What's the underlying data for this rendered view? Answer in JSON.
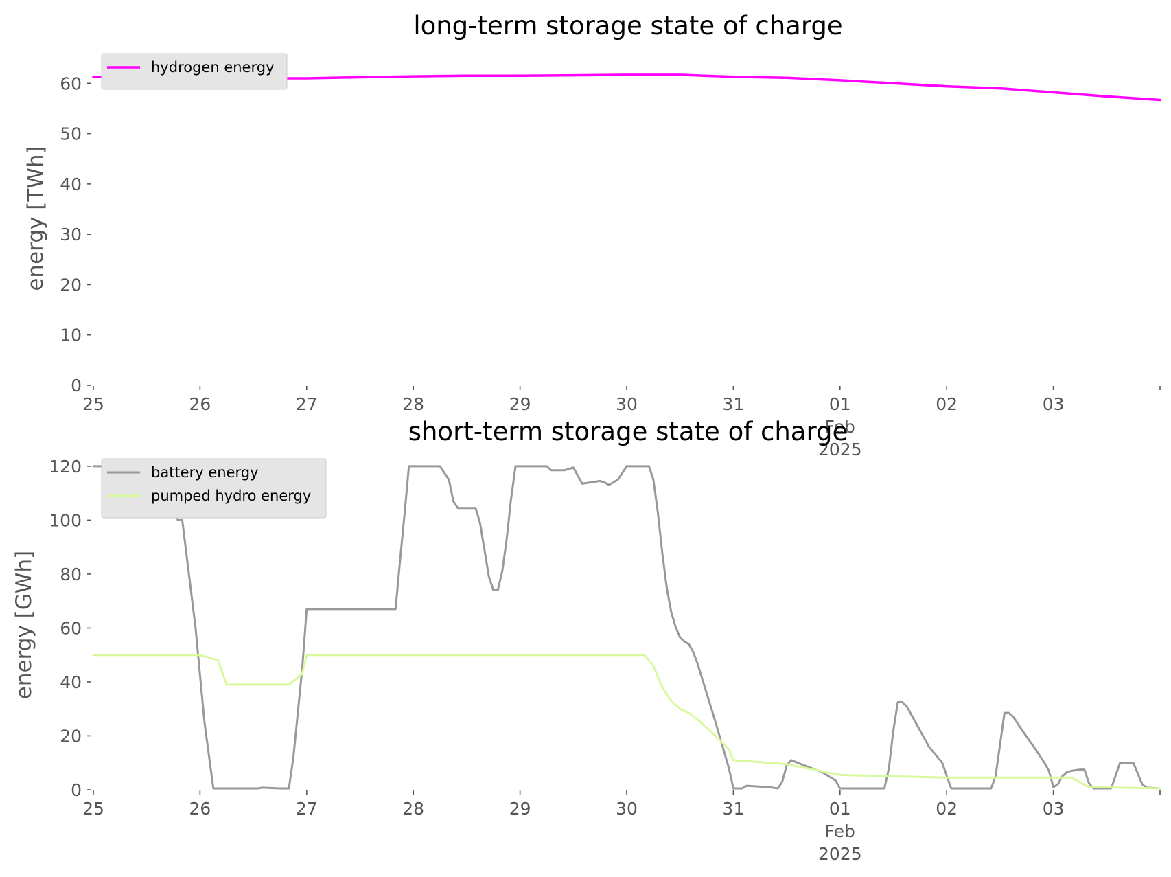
{
  "chart_data": [
    {
      "type": "line",
      "title": "long-term storage state of charge",
      "xlabel": "",
      "ylabel": "energy [TWh]",
      "x_tick_labels": [
        "25",
        "26",
        "27",
        "28",
        "29",
        "30",
        "31",
        "01\nFeb\n2025",
        "02",
        "03"
      ],
      "xlim": [
        "2025-01-25",
        "2025-02-04"
      ],
      "ylim": [
        0,
        64
      ],
      "y_ticks": [
        0,
        10,
        20,
        30,
        40,
        50,
        60
      ],
      "grid": false,
      "legend_position": "top-left",
      "series": [
        {
          "name": "hydrogen energy",
          "color": "#ff00ff",
          "points": [
            [
              "2025-01-25",
              61.3
            ],
            [
              "2025-01-25T12:00",
              61.2
            ],
            [
              "2025-01-26",
              61.1
            ],
            [
              "2025-01-26T12:00",
              61.0
            ],
            [
              "2025-01-27",
              61.0
            ],
            [
              "2025-01-27T12:00",
              61.2
            ],
            [
              "2025-01-28",
              61.4
            ],
            [
              "2025-01-28T12:00",
              61.5
            ],
            [
              "2025-01-29",
              61.5
            ],
            [
              "2025-01-29T12:00",
              61.6
            ],
            [
              "2025-01-30",
              61.7
            ],
            [
              "2025-01-30T12:00",
              61.7
            ],
            [
              "2025-01-31",
              61.3
            ],
            [
              "2025-01-31T12:00",
              61.1
            ],
            [
              "2025-02-01",
              60.6
            ],
            [
              "2025-02-01T12:00",
              60.0
            ],
            [
              "2025-02-02",
              59.4
            ],
            [
              "2025-02-02T12:00",
              59.0
            ],
            [
              "2025-02-03",
              58.2
            ],
            [
              "2025-02-03T12:00",
              57.4
            ],
            [
              "2025-02-04",
              56.7
            ]
          ]
        }
      ]
    },
    {
      "type": "line",
      "title": "short-term storage state of charge",
      "xlabel": "",
      "ylabel": "energy [GWh]",
      "x_tick_labels": [
        "25",
        "26",
        "27",
        "28",
        "29",
        "30",
        "31",
        "01\nFeb\n2025",
        "02",
        "03"
      ],
      "xlim": [
        "2025-01-25",
        "2025-02-04"
      ],
      "ylim": [
        0,
        122
      ],
      "y_ticks": [
        0,
        20,
        40,
        60,
        80,
        100,
        120
      ],
      "grid": false,
      "legend_position": "top-left",
      "series": [
        {
          "name": "battery energy",
          "color": "#999999",
          "points": [
            [
              "2025-01-25",
              120
            ],
            [
              "2025-01-25T17:00",
              120
            ],
            [
              "2025-01-25T19:00",
              100
            ],
            [
              "2025-01-25T20:00",
              100
            ],
            [
              "2025-01-25T23:00",
              60
            ],
            [
              "2025-01-26T01:00",
              25
            ],
            [
              "2025-01-26T03:00",
              0.5
            ],
            [
              "2025-01-26T13:00",
              0.5
            ],
            [
              "2025-01-26T14:00",
              0.8
            ],
            [
              "2025-01-26T18:00",
              0.5
            ],
            [
              "2025-01-26T20:00",
              0.5
            ],
            [
              "2025-01-26T21:00",
              12
            ],
            [
              "2025-01-26T23:00",
              45
            ],
            [
              "2025-01-27",
              67
            ],
            [
              "2025-01-27T12:00",
              67
            ],
            [
              "2025-01-27T20:00",
              67
            ],
            [
              "2025-01-27T21:00",
              85
            ],
            [
              "2025-01-27T22:00",
              102
            ],
            [
              "2025-01-27T23:00",
              120
            ],
            [
              "2025-01-28T06:00",
              120
            ],
            [
              "2025-01-28T08:00",
              115
            ],
            [
              "2025-01-28T09:00",
              107
            ],
            [
              "2025-01-28T10:00",
              104.5
            ],
            [
              "2025-01-28T14:00",
              104.5
            ],
            [
              "2025-01-28T15:00",
              99
            ],
            [
              "2025-01-28T16:00",
              89
            ],
            [
              "2025-01-28T17:00",
              79
            ],
            [
              "2025-01-28T18:00",
              74
            ],
            [
              "2025-01-28T19:00",
              74
            ],
            [
              "2025-01-28T20:00",
              81
            ],
            [
              "2025-01-28T21:00",
              93
            ],
            [
              "2025-01-28T22:00",
              108
            ],
            [
              "2025-01-28T23:00",
              120
            ],
            [
              "2025-01-29T06:00",
              120
            ],
            [
              "2025-01-29T07:00",
              118.5
            ],
            [
              "2025-01-29T10:00",
              118.5
            ],
            [
              "2025-01-29T12:00",
              119.5
            ],
            [
              "2025-01-29T14:00",
              113.5
            ],
            [
              "2025-01-29T18:00",
              114.5
            ],
            [
              "2025-01-29T19:00",
              114
            ],
            [
              "2025-01-29T20:00",
              113
            ],
            [
              "2025-01-29T22:00",
              115
            ],
            [
              "2025-01-30",
              120
            ],
            [
              "2025-01-30T05:00",
              120
            ],
            [
              "2025-01-30T06:00",
              115
            ],
            [
              "2025-01-30T07:00",
              103
            ],
            [
              "2025-01-30T08:00",
              88
            ],
            [
              "2025-01-30T09:00",
              75
            ],
            [
              "2025-01-30T10:00",
              66
            ],
            [
              "2025-01-30T11:00",
              60.5
            ],
            [
              "2025-01-30T12:00",
              56.5
            ],
            [
              "2025-01-30T13:00",
              55
            ],
            [
              "2025-01-30T14:00",
              54
            ],
            [
              "2025-01-30T15:00",
              51
            ],
            [
              "2025-01-30T16:00",
              46.5
            ],
            [
              "2025-01-30T20:00",
              25
            ],
            [
              "2025-01-30T23:00",
              8
            ],
            [
              "2025-01-31",
              0.5
            ],
            [
              "2025-01-31T02:00",
              0.5
            ],
            [
              "2025-01-31T03:00",
              1.5
            ],
            [
              "2025-01-31T08:00",
              1
            ],
            [
              "2025-01-31T10:00",
              0.5
            ],
            [
              "2025-01-31T11:00",
              3
            ],
            [
              "2025-01-31T12:00",
              9
            ],
            [
              "2025-01-31T13:00",
              11
            ],
            [
              "2025-01-31T16:00",
              9
            ],
            [
              "2025-01-31T20:00",
              6.5
            ],
            [
              "2025-01-31T23:00",
              3.5
            ],
            [
              "2025-02-01",
              0.5
            ],
            [
              "2025-02-01T10:00",
              0.5
            ],
            [
              "2025-02-01T11:00",
              8
            ],
            [
              "2025-02-01T12:00",
              22
            ],
            [
              "2025-02-01T13:00",
              32.5
            ],
            [
              "2025-02-01T14:00",
              32.5
            ],
            [
              "2025-02-01T15:00",
              31
            ],
            [
              "2025-02-01T16:00",
              28
            ],
            [
              "2025-02-01T20:00",
              16
            ],
            [
              "2025-02-01T23:00",
              10
            ],
            [
              "2025-02-02T01:00",
              0.5
            ],
            [
              "2025-02-02T10:00",
              0.5
            ],
            [
              "2025-02-02T11:00",
              5
            ],
            [
              "2025-02-02T13:00",
              28.5
            ],
            [
              "2025-02-02T14:00",
              28.5
            ],
            [
              "2025-02-02T15:00",
              27
            ],
            [
              "2025-02-02T17:00",
              22
            ],
            [
              "2025-02-02T20:00",
              15
            ],
            [
              "2025-02-02T22:00",
              10
            ],
            [
              "2025-02-02T23:00",
              7
            ],
            [
              "2025-02-03",
              1
            ],
            [
              "2025-02-03T01:00",
              2
            ],
            [
              "2025-02-03T02:00",
              5
            ],
            [
              "2025-02-03T03:00",
              6.5
            ],
            [
              "2025-02-03T04:00",
              7
            ],
            [
              "2025-02-03T06:00",
              7.5
            ],
            [
              "2025-02-03T07:00",
              7.5
            ],
            [
              "2025-02-03T08:00",
              2.5
            ],
            [
              "2025-02-03T09:00",
              0.5
            ],
            [
              "2025-02-03T13:00",
              0.5
            ],
            [
              "2025-02-03T15:00",
              10
            ],
            [
              "2025-02-03T18:00",
              10
            ],
            [
              "2025-02-03T20:00",
              2
            ],
            [
              "2025-02-03T21:00",
              0.8
            ],
            [
              "2025-02-04",
              0.5
            ]
          ]
        },
        {
          "name": "pumped hydro energy",
          "color": "#d9f99d",
          "points": [
            [
              "2025-01-25",
              50
            ],
            [
              "2025-01-26",
              50
            ],
            [
              "2025-01-26T04:00",
              48
            ],
            [
              "2025-01-26T06:00",
              39
            ],
            [
              "2025-01-26T20:00",
              39
            ],
            [
              "2025-01-26T23:00",
              43
            ],
            [
              "2025-01-27",
              50
            ],
            [
              "2025-01-30T04:00",
              50
            ],
            [
              "2025-01-30T06:00",
              46
            ],
            [
              "2025-01-30T08:00",
              38
            ],
            [
              "2025-01-30T10:00",
              33
            ],
            [
              "2025-01-30T12:00",
              30
            ],
            [
              "2025-01-30T14:00",
              28.5
            ],
            [
              "2025-01-30T16:00",
              26
            ],
            [
              "2025-01-30T20:00",
              20
            ],
            [
              "2025-01-30T23:00",
              15
            ],
            [
              "2025-01-31",
              11
            ],
            [
              "2025-01-31T12:00",
              9.5
            ],
            [
              "2025-02-01",
              5.5
            ],
            [
              "2025-02-01T12:00",
              5
            ],
            [
              "2025-02-02",
              4.5
            ],
            [
              "2025-02-03",
              4.5
            ],
            [
              "2025-02-03T04:00",
              4.5
            ],
            [
              "2025-02-03T08:00",
              1
            ],
            [
              "2025-02-04",
              0.5
            ]
          ]
        }
      ]
    }
  ]
}
